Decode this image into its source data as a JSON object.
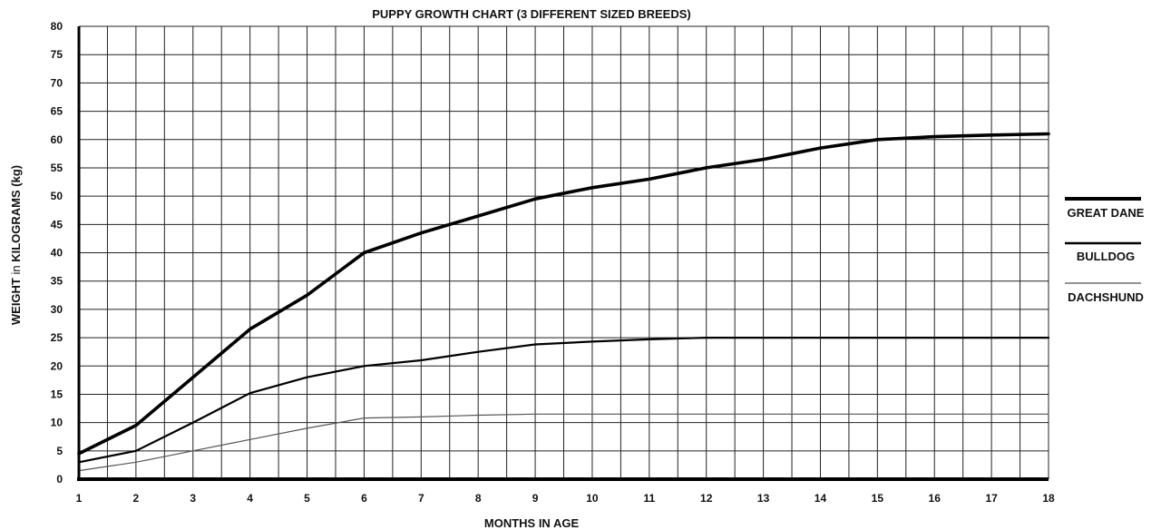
{
  "chart_data": {
    "type": "line",
    "title": "PUPPY GROWTH CHART (3 DIFFERENT SIZED BREEDS)",
    "xlabel": "MONTHS IN AGE",
    "ylabel_parts": [
      "WEIGHT",
      " in ",
      "KILOGRAMS",
      " (kg)"
    ],
    "x": [
      1,
      2,
      3,
      4,
      5,
      6,
      7,
      8,
      9,
      10,
      11,
      12,
      13,
      14,
      15,
      16,
      17,
      18
    ],
    "x_tick_labels": [
      "1",
      "2",
      "3",
      "4",
      "5",
      "6",
      "7",
      "8",
      "9",
      "10",
      "11",
      "12",
      "13",
      "14",
      "15",
      "16",
      "17",
      "18"
    ],
    "y_tick_labels": [
      "0",
      "5",
      "10",
      "15",
      "20",
      "25",
      "30",
      "35",
      "40",
      "45",
      "50",
      "55",
      "60",
      "65",
      "70",
      "75",
      "80"
    ],
    "xlim": [
      1,
      18
    ],
    "ylim": [
      0,
      80
    ],
    "grid": true,
    "legend_position": "right",
    "series": [
      {
        "name": "GREAT DANE",
        "color": "#000000",
        "values": [
          4.5,
          9.5,
          18,
          26.5,
          32.5,
          40,
          43.5,
          46.5,
          49.5,
          51.5,
          53,
          55,
          56.5,
          58.5,
          60,
          60.5,
          60.8,
          61
        ]
      },
      {
        "name": "BULLDOG",
        "color": "#000000",
        "values": [
          3,
          5,
          10,
          15.2,
          18,
          20,
          21,
          22.5,
          23.8,
          24.3,
          24.7,
          25,
          25,
          25,
          25,
          25,
          25,
          25
        ]
      },
      {
        "name": "DACHSHUND",
        "color": "#555555",
        "values": [
          1.5,
          3,
          5,
          7,
          9,
          10.8,
          11,
          11.3,
          11.5,
          11.5,
          11.5,
          11.5,
          11.5,
          11.5,
          11.5,
          11.5,
          11.5,
          11.5
        ]
      }
    ]
  }
}
